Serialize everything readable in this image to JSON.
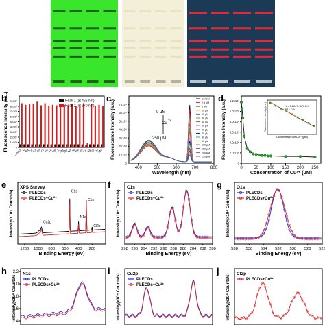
{
  "figure": {
    "panel_letters": [
      "a",
      "b",
      "c",
      "d",
      "e",
      "f",
      "g",
      "h",
      "i",
      "j"
    ]
  },
  "photos": {
    "a": {
      "lanes": 4,
      "green_bands": [
        0.82,
        0.62,
        0.48,
        0.4,
        0.3
      ],
      "red_bands": [
        0.8,
        0.62,
        0.48,
        0.38,
        0.3
      ],
      "colors": {
        "green": "#39e62b",
        "cream": "#f4efd9",
        "uv": "#1a3a55",
        "band_red": "#ff2a3a"
      }
    }
  },
  "chart_data": [
    {
      "id": "b",
      "type": "bar",
      "ylabel": "Fluorescence Intensity (a.u.)",
      "categories": [
        "Control",
        "Al",
        "Ba",
        "Ca",
        "Cd",
        "Co",
        "Cr",
        "Fe",
        "Fe",
        "Hg",
        "K",
        "Mg",
        "Mn",
        "Na",
        "Ni",
        "Pb",
        "Zn",
        "Cu",
        "Ag",
        "Sr",
        "Li",
        "Mo"
      ],
      "series": [
        {
          "name": "Peak 1 (at 466 nm)",
          "color": "#111111",
          "values": [
            0.6,
            0.6,
            0.6,
            0.6,
            0.6,
            0.6,
            0.6,
            0.6,
            0.6,
            0.6,
            0.6,
            0.6,
            0.6,
            0.6,
            0.6,
            0.6,
            0.6,
            0.5,
            0.6,
            0.6,
            0.6,
            0.6
          ]
        },
        {
          "name": "Peak 2 (at 670 nm)",
          "color": "#cc1f1f",
          "values": [
            8.6,
            8.3,
            8.4,
            8.5,
            8.9,
            8.2,
            8.6,
            8.1,
            8.3,
            8.2,
            8.4,
            8.3,
            8.2,
            8.4,
            8.1,
            7.9,
            8.6,
            0.9,
            8.5,
            8.1,
            8.3,
            8.1
          ]
        }
      ],
      "ylim": [
        0,
        10
      ],
      "yticks": [
        "0",
        "1x10⁶",
        "2x10⁶",
        "3x10⁶",
        "4x10⁶",
        "5x10⁶",
        "6x10⁶",
        "7x10⁶",
        "8x10⁶",
        "9x10⁶"
      ]
    },
    {
      "id": "c",
      "type": "line",
      "xlabel": "Wavelength (nm)",
      "ylabel": "Fluorescence Intensity (a.u.)",
      "xlim": [
        350,
        800
      ],
      "ylim": [
        0,
        8
      ],
      "xticks": [
        400,
        500,
        600,
        700,
        800
      ],
      "yticks": [
        "0",
        "1x10⁶",
        "2x10⁶",
        "3x10⁶",
        "4x10⁶",
        "5x10⁶",
        "6x10⁶",
        "7x10⁶"
      ],
      "annotations": [
        "0 μM",
        "Cu",
        "2+",
        "250 μM"
      ],
      "legend": [
        "Control",
        "2.5 μM",
        "5 μM",
        "10 μM",
        "20 μM",
        "30 μM",
        "40 μM",
        "50 μM",
        "60 μM",
        "70 μM",
        "80 μM",
        "90 μM",
        "100 μM",
        "150 μM",
        "200 μM",
        "250 μM"
      ],
      "peak_heights": [
        6.8,
        6.2,
        5.6,
        5.1,
        4.6,
        4.1,
        3.7,
        3.3,
        2.9,
        2.5,
        2.2,
        1.9,
        1.6,
        1.3,
        1.0,
        0.8
      ],
      "base_heights": [
        1.9,
        1.9,
        2.0,
        2.0,
        2.1,
        2.1,
        2.2,
        2.2,
        2.3,
        2.3,
        2.4,
        2.4,
        2.5,
        2.5,
        2.6,
        2.6
      ],
      "colors": [
        "#111111",
        "#e41a1c",
        "#377eb8",
        "#ff7f00",
        "#984ea3",
        "#4daf4a",
        "#a65628",
        "#f781bf",
        "#999999",
        "#0000ff",
        "#00b3b3",
        "#ffd700",
        "#8b008b",
        "#006400",
        "#ff1493",
        "#1f78b4"
      ]
    },
    {
      "id": "d",
      "type": "scatter",
      "xlabel": "Concentration of Cu²⁺ (μM)",
      "ylabel": "Fluorescence Intensity (a.u.)",
      "x": [
        0,
        2.5,
        5,
        10,
        20,
        30,
        40,
        50,
        60,
        70,
        80,
        90,
        100,
        150,
        200,
        250
      ],
      "y": [
        11.8,
        10.5,
        8.8,
        5.2,
        2.8,
        2.2,
        1.8,
        1.7,
        1.6,
        1.5,
        1.5,
        1.4,
        1.4,
        1.3,
        1.3,
        1.2
      ],
      "xlim": [
        0,
        270
      ],
      "ylim": [
        0,
        13
      ],
      "xticks": [
        0,
        50,
        100,
        150,
        200,
        250
      ],
      "yticks": [
        "0",
        "2.0x10⁶",
        "4.0x10⁶",
        "6.0x10⁶",
        "8.0x10⁶",
        "1.0x10⁷",
        "1.2x10⁷"
      ],
      "inset": {
        "xlabel": "Concentration of Cu²⁺ (μM)",
        "ylabel": "Fluorescence Intensity (a.u.)",
        "equation": "Y = 1.22e7 - 576.2X",
        "r2": "R² = 0.9…",
        "x": [
          0,
          2.5,
          5,
          7.5,
          10,
          12.5,
          15,
          17.5,
          20
        ],
        "y": [
          1.0,
          0.9,
          0.8,
          0.7,
          0.6,
          0.5,
          0.4,
          0.3,
          0.2
        ]
      }
    },
    {
      "id": "e",
      "type": "line",
      "title": "XPS Survey",
      "xlabel": "Binding Energy (eV)",
      "ylabel": "Intensity(x10⁵ Counts/s)",
      "xlim": [
        1300,
        0
      ],
      "xticks": [
        1200,
        1000,
        800,
        600,
        400,
        200
      ],
      "peaks": [
        "O1s",
        "N1s",
        "C1s",
        "Cu2p",
        "Cl2p"
      ],
      "series": [
        {
          "name": "PLECDs",
          "color": "#000000"
        },
        {
          "name": "PLECDs+Cu²⁺",
          "color": "#d62728"
        }
      ]
    },
    {
      "id": "f",
      "type": "line",
      "title": "C1s",
      "xlabel": "Binding Energy (eV)",
      "ylabel": "Intensity(x10⁴ Counts/s)",
      "xlim": [
        298,
        280
      ],
      "xticks": [
        298,
        296,
        294,
        292,
        290,
        288,
        286,
        284,
        282,
        280
      ],
      "series": [
        {
          "name": "PLECDs",
          "color": "#2a2ad4"
        },
        {
          "name": "PLECDs+Cu²⁺",
          "color": "#d62728"
        }
      ]
    },
    {
      "id": "g",
      "type": "line",
      "title": "O1s",
      "xlabel": "Binding Energy (eV)",
      "ylabel": "Intensity(x10⁴ Counts/s)",
      "xlim": [
        538,
        526
      ],
      "xticks": [
        538,
        536,
        534,
        532,
        530,
        528,
        526
      ],
      "series": [
        {
          "name": "PLECDs",
          "color": "#2a2ad4"
        },
        {
          "name": "PLECDs+Cu²⁺",
          "color": "#d62728"
        }
      ]
    },
    {
      "id": "h",
      "type": "line",
      "title": "N1s",
      "ylabel": "Intensity(x10⁴ Counts/s)",
      "yticks": [
        "2.4",
        "2.6",
        "2.8",
        "3.0",
        "3.2"
      ],
      "series": [
        {
          "name": "PLECDs",
          "color": "#2a2ad4"
        },
        {
          "name": "PLECDs+Cu²⁺",
          "color": "#d62728"
        }
      ]
    },
    {
      "id": "i",
      "type": "line",
      "title": "Cu2p",
      "ylabel": "Intensity(x10⁴ Counts/s)",
      "series": [
        {
          "name": "PLECDs",
          "color": "#2a2ad4"
        },
        {
          "name": "PLECDs+Cu²⁺",
          "color": "#d62728"
        }
      ]
    },
    {
      "id": "j",
      "type": "line",
      "title": "Cl2p",
      "ylabel": "Intensity(x10⁴ Counts/s)",
      "series": [
        {
          "name": "PLECDs+Cu²⁺",
          "color": "#d62728"
        }
      ]
    }
  ]
}
